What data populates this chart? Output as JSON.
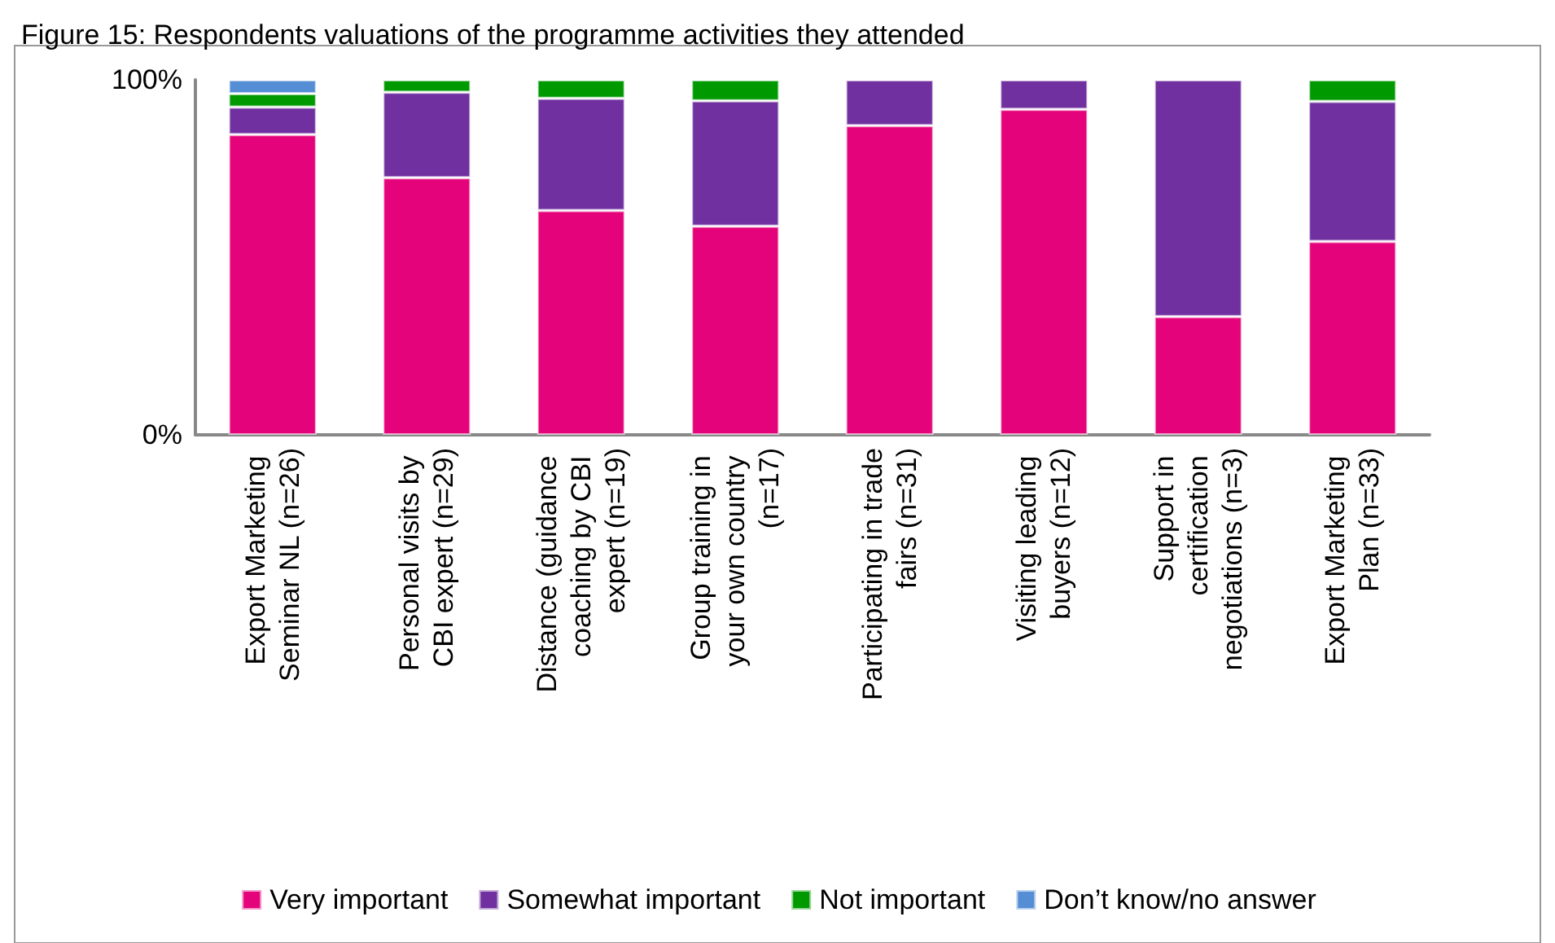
{
  "chart_data": {
    "type": "bar",
    "title": "Figure 15: Respondents valuations of the programme activities they attended",
    "stacked": true,
    "categories": [
      "Export Marketing Seminar NL (n=26)",
      "Personal visits by CBI expert (n=29)",
      "Distance (guidance coaching by CBI expert (n=19)",
      "Group training in your own country (n=17)",
      "Participating in trade fairs (n=31)",
      "Visiting leading buyers (n=12)",
      "Support in certification negotiations (n=3)",
      "Export Marketing Plan (n=33)"
    ],
    "series": [
      {
        "name": "Very important",
        "color": "#e4037a",
        "values": [
          84.6,
          72.4,
          63.2,
          58.8,
          87.1,
          91.7,
          33.3,
          54.5
        ]
      },
      {
        "name": "Somewhat important",
        "color": "#7030a0",
        "values": [
          7.7,
          24.1,
          31.6,
          35.3,
          12.9,
          8.3,
          66.7,
          39.4
        ]
      },
      {
        "name": "Not important",
        "color": "#009900",
        "values": [
          3.8,
          3.5,
          5.2,
          5.9,
          null,
          null,
          null,
          6.1
        ]
      },
      {
        "name": "Don’t know/no answer",
        "color": "#558ed5",
        "values": [
          3.9,
          null,
          null,
          null,
          null,
          null,
          null,
          null
        ]
      }
    ],
    "ylim": [
      0,
      100
    ],
    "yticks": [
      {
        "value": 0,
        "label": "0%"
      },
      {
        "value": 100,
        "label": "100%"
      }
    ],
    "legend": "bottom"
  }
}
